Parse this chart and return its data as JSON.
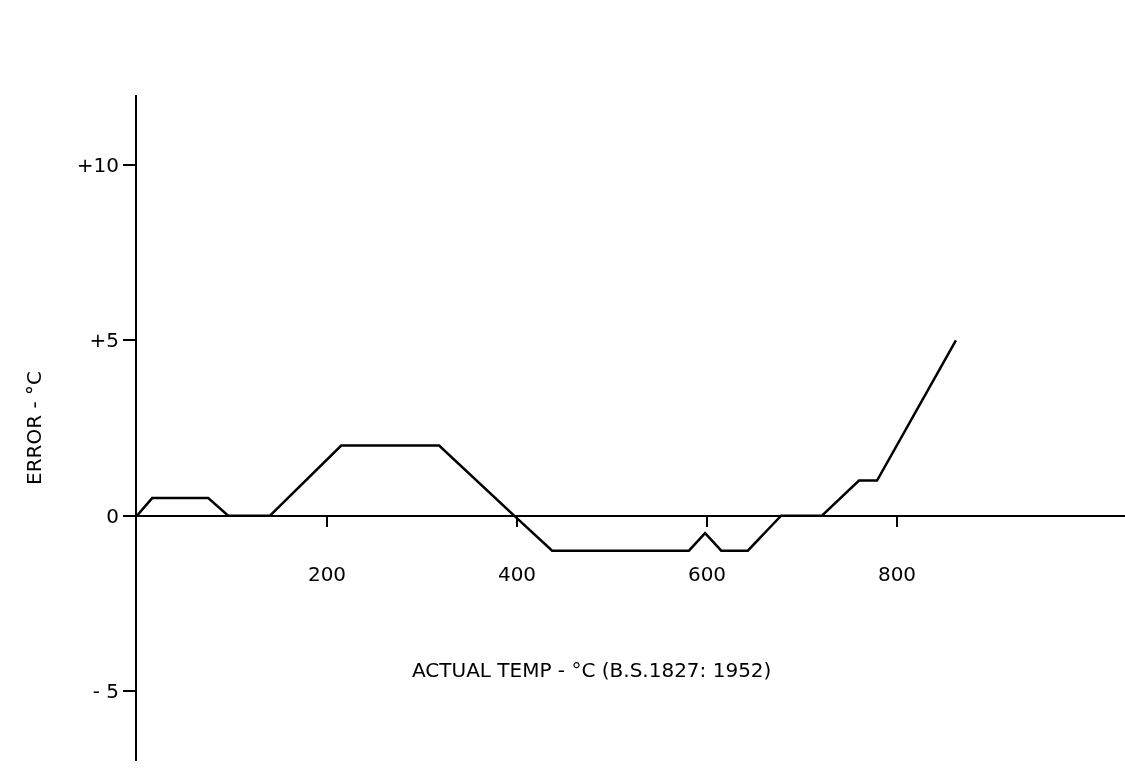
{
  "chart_data": {
    "type": "line",
    "xlabel": "ACTUAL TEMP - °C (B.S.1827: 1952)",
    "ylabel": "ERROR - °C",
    "x": [
      0,
      16,
      75,
      96,
      140,
      215,
      318,
      397,
      437,
      581,
      598,
      615,
      643,
      678,
      721,
      760,
      779,
      862
    ],
    "series": [
      {
        "color": "#000000",
        "values": [
          0,
          0.5,
          0.5,
          0,
          0,
          2,
          2,
          0,
          -1,
          -1,
          -0.5,
          -1,
          -1,
          0,
          0,
          1,
          1,
          5
        ]
      }
    ],
    "xlim": [
      0,
      1040
    ],
    "xticks": [
      200,
      400,
      600,
      800
    ],
    "ylim": [
      -7,
      12
    ],
    "yticks": [
      {
        "value": 10,
        "label": "+10"
      },
      {
        "value": 5,
        "label": "+5"
      },
      0,
      {
        "value": -5,
        "label": "- 5"
      }
    ],
    "grid": false,
    "marker": "none",
    "line_style": "solid"
  }
}
